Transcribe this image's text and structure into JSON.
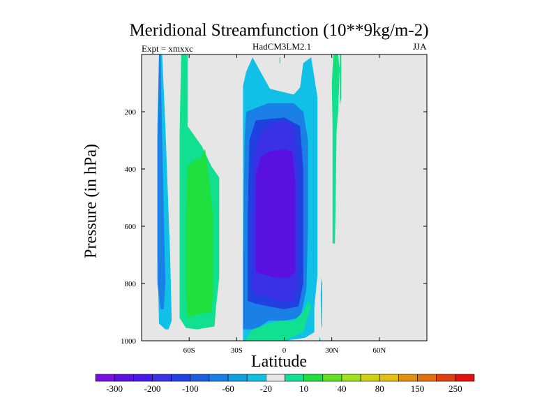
{
  "chart_data": {
    "type": "contour",
    "title": "Meridional Streamfunction (10**9kg/m-2)",
    "subtitle_left": "Expt = xmxxc",
    "subtitle_center": "HadCM3LM2.1",
    "subtitle_right": "JJA",
    "xlabel": "Latitude",
    "ylabel": "Pressure (in hPa)",
    "x_ticks": [
      {
        "value": -60,
        "label": "60S"
      },
      {
        "value": -30,
        "label": "30S"
      },
      {
        "value": 0,
        "label": "0"
      },
      {
        "value": 30,
        "label": "30N"
      },
      {
        "value": 60,
        "label": "60N"
      }
    ],
    "y_ticks": [
      {
        "value": 200,
        "label": "200"
      },
      {
        "value": 400,
        "label": "400"
      },
      {
        "value": 600,
        "label": "600"
      },
      {
        "value": 800,
        "label": "800"
      },
      {
        "value": 1000,
        "label": "1000"
      }
    ],
    "xlim": [
      -90,
      90
    ],
    "ylim": [
      1000,
      0
    ],
    "missing_color": "#e6e6e6",
    "colorbar": {
      "colors": [
        "#7a0de0",
        "#5a10e0",
        "#4a18e8",
        "#3a30e6",
        "#2040e0",
        "#1a60e0",
        "#1a80e6",
        "#10a0e0",
        "#10c0e6",
        "#e6e6e6",
        "#10e090",
        "#20e040",
        "#60e020",
        "#a0e020",
        "#d0d010",
        "#e0c010",
        "#e09010",
        "#e07010",
        "#e04010",
        "#e01010"
      ],
      "labels": [
        "-300",
        "-200",
        "-100",
        "-60",
        "-20",
        "10",
        "40",
        "80",
        "150",
        "250"
      ]
    },
    "regions": [
      {
        "name": "southern-cell-outer",
        "level": -20,
        "color": "#10c0e6",
        "outline": [
          [
            -79,
            0
          ],
          [
            -77,
            0
          ],
          [
            -75,
            250
          ],
          [
            -73,
            550
          ],
          [
            -72,
            700
          ],
          [
            -71,
            930
          ],
          [
            -73,
            960
          ],
          [
            -75,
            960
          ],
          [
            -79,
            940
          ],
          [
            -80,
            700
          ],
          [
            -80,
            250
          ]
        ]
      },
      {
        "name": "southern-cell-core",
        "level": -60,
        "color": "#1a80e6",
        "outline": [
          [
            -79,
            0
          ],
          [
            -78,
            0
          ],
          [
            -77,
            300
          ],
          [
            -76,
            550
          ],
          [
            -75,
            800
          ],
          [
            -76,
            890
          ],
          [
            -78,
            890
          ],
          [
            -80,
            800
          ],
          [
            -80,
            300
          ]
        ]
      },
      {
        "name": "southern-positive-outer",
        "level": 10,
        "color": "#10e090",
        "outline": [
          [
            -65,
            0
          ],
          [
            -61,
            0
          ],
          [
            -61,
            250
          ],
          [
            -52,
            320
          ],
          [
            -46,
            390
          ],
          [
            -41,
            430
          ],
          [
            -41,
            780
          ],
          [
            -43,
            880
          ],
          [
            -44,
            950
          ],
          [
            -55,
            960
          ],
          [
            -62,
            955
          ],
          [
            -66,
            920
          ],
          [
            -66,
            700
          ],
          [
            -66,
            280
          ]
        ]
      },
      {
        "name": "southern-positive-core",
        "level": 40,
        "color": "#20e040",
        "outline": [
          [
            -61,
            920
          ],
          [
            -62,
            840
          ],
          [
            -62,
            560
          ],
          [
            -61,
            390
          ],
          [
            -57,
            370
          ],
          [
            -52,
            360
          ],
          [
            -50,
            330
          ],
          [
            -47,
            450
          ],
          [
            -45,
            560
          ],
          [
            -45,
            700
          ],
          [
            -45,
            840
          ],
          [
            -46,
            900
          ],
          [
            -52,
            905
          ],
          [
            -56,
            910
          ]
        ]
      },
      {
        "name": "hadley-cell-l1",
        "level": -20,
        "color": "#10c0e6",
        "outline": [
          [
            -26,
            1000
          ],
          [
            -26,
            800
          ],
          [
            -26,
            500
          ],
          [
            -26,
            110
          ],
          [
            -24,
            60
          ],
          [
            -20,
            10
          ],
          [
            -16,
            50
          ],
          [
            -9,
            120
          ],
          [
            6,
            140
          ],
          [
            10,
            115
          ],
          [
            12,
            30
          ],
          [
            17,
            10
          ],
          [
            21,
            150
          ],
          [
            21,
            380
          ],
          [
            21,
            770
          ],
          [
            19,
            880
          ],
          [
            19,
            970
          ],
          [
            13,
            990
          ],
          [
            0,
            1000
          ],
          [
            -12,
            1000
          ]
        ]
      },
      {
        "name": "hadley-cell-l2",
        "level": -60,
        "color": "#1a80e6",
        "outline": [
          [
            -26,
            960
          ],
          [
            -26,
            700
          ],
          [
            -25,
            300
          ],
          [
            -24,
            200
          ],
          [
            -10,
            170
          ],
          [
            6,
            170
          ],
          [
            12,
            200
          ],
          [
            15,
            300
          ],
          [
            15,
            600
          ],
          [
            14,
            820
          ],
          [
            11,
            900
          ],
          [
            9,
            920
          ],
          [
            0,
            930
          ],
          [
            -10,
            930
          ],
          [
            -18,
            960
          ]
        ]
      },
      {
        "name": "hadley-cell-l3",
        "level": -100,
        "color": "#2040e0",
        "outline": [
          [
            -23,
            860
          ],
          [
            -23,
            560
          ],
          [
            -22,
            300
          ],
          [
            -18,
            230
          ],
          [
            0,
            220
          ],
          [
            10,
            250
          ],
          [
            12,
            400
          ],
          [
            12,
            800
          ],
          [
            9,
            880
          ],
          [
            0,
            890
          ],
          [
            -10,
            880
          ],
          [
            -18,
            870
          ]
        ]
      },
      {
        "name": "hadley-cell-l4",
        "level": -200,
        "color": "#3a30e6",
        "outline": [
          [
            -20,
            820
          ],
          [
            -20,
            560
          ],
          [
            -19,
            360
          ],
          [
            -16,
            280
          ],
          [
            -8,
            240
          ],
          [
            0,
            235
          ],
          [
            6,
            250
          ],
          [
            9,
            400
          ],
          [
            9,
            800
          ],
          [
            6,
            860
          ],
          [
            0,
            865
          ],
          [
            -10,
            850
          ],
          [
            -18,
            840
          ]
        ]
      },
      {
        "name": "hadley-cell-l5",
        "level": -300,
        "color": "#5a10e0",
        "outline": [
          [
            -18,
            760
          ],
          [
            -18,
            420
          ],
          [
            -15,
            360
          ],
          [
            -10,
            340
          ],
          [
            0,
            330
          ],
          [
            5,
            340
          ],
          [
            7,
            450
          ],
          [
            7,
            760
          ],
          [
            3,
            780
          ],
          [
            -5,
            780
          ],
          [
            -12,
            770
          ]
        ]
      },
      {
        "name": "hadley-cell-surface-tongue",
        "level": 10,
        "color": "#10e090",
        "outline": [
          [
            -25,
            1000
          ],
          [
            -20,
            960
          ],
          [
            -10,
            940
          ],
          [
            -2,
            930
          ],
          [
            6,
            930
          ],
          [
            12,
            900
          ],
          [
            15,
            860
          ],
          [
            17,
            880
          ],
          [
            12,
            970
          ],
          [
            0,
            1000
          ]
        ]
      },
      {
        "name": "northern-fringe-left",
        "level": -20,
        "color": "#10c0e6",
        "outline": [
          [
            23,
            840
          ],
          [
            23.5,
            780
          ],
          [
            24,
            800
          ],
          [
            24,
            940
          ],
          [
            23.5,
            960
          ]
        ]
      },
      {
        "name": "northern-fringe-tail",
        "level": -20,
        "color": "#10c0e6",
        "outline": [
          [
            22,
            1000
          ],
          [
            22.5,
            985
          ],
          [
            23,
            1000
          ]
        ]
      },
      {
        "name": "northern-positive-strip",
        "level": 10,
        "color": "#10e090",
        "outline": [
          [
            31,
            0
          ],
          [
            34,
            0
          ],
          [
            35,
            50
          ],
          [
            34,
            200
          ],
          [
            33,
            270
          ],
          [
            32.5,
            500
          ],
          [
            32,
            660
          ],
          [
            30.5,
            660
          ],
          [
            30.5,
            500
          ],
          [
            30.5,
            250
          ],
          [
            30,
            100
          ]
        ]
      },
      {
        "name": "northern-positive-strip-2",
        "level": 10,
        "color": "#10e090",
        "outline": [
          [
            35,
            0
          ],
          [
            36,
            0
          ],
          [
            36,
            150
          ],
          [
            35,
            180
          ]
        ]
      },
      {
        "name": "northern-positive-core",
        "level": 40,
        "color": "#20e040",
        "outline": [
          [
            32,
            0
          ],
          [
            33,
            0
          ],
          [
            33,
            120
          ],
          [
            32.5,
            150
          ]
        ]
      },
      {
        "name": "tiny-positive-spot",
        "level": 10,
        "color": "#10e090",
        "outline": [
          [
            -3,
            10
          ],
          [
            -2.5,
            10
          ],
          [
            -2.5,
            30
          ],
          [
            -3,
            30
          ]
        ]
      }
    ]
  }
}
